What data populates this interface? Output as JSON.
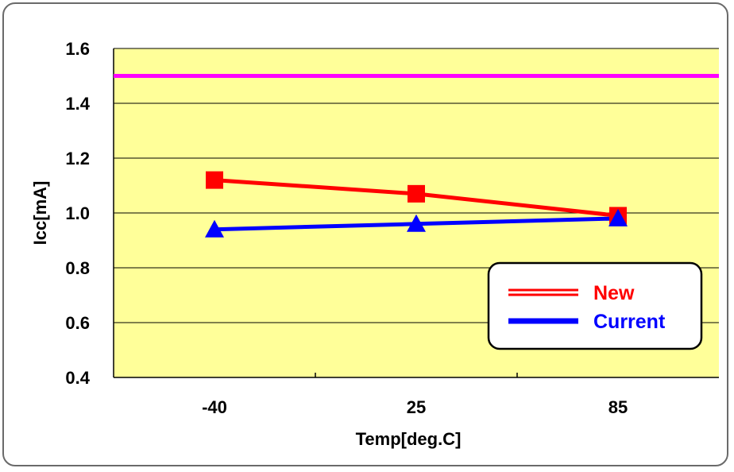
{
  "chart_data": {
    "type": "line",
    "xlabel": "Temp[deg.C]",
    "ylabel": "Icc[mA]",
    "categories": [
      "-40",
      "25",
      "85"
    ],
    "ylim": [
      0.4,
      1.6
    ],
    "yticks": [
      "0.4",
      "0.6",
      "0.8",
      "1.0",
      "1.2",
      "1.4",
      "1.6"
    ],
    "grid": true,
    "legend_position": "bottom-right",
    "plot_background": "#ffff99",
    "series": [
      {
        "name": "New",
        "values": [
          1.12,
          1.07,
          0.99
        ],
        "color": "#ff0000",
        "marker": "square"
      },
      {
        "name": "Current",
        "values": [
          0.94,
          0.96,
          0.98
        ],
        "color": "#0000ff",
        "marker": "triangle"
      }
    ],
    "reference_line": {
      "value": 1.5,
      "color": "#ff00ff"
    }
  }
}
